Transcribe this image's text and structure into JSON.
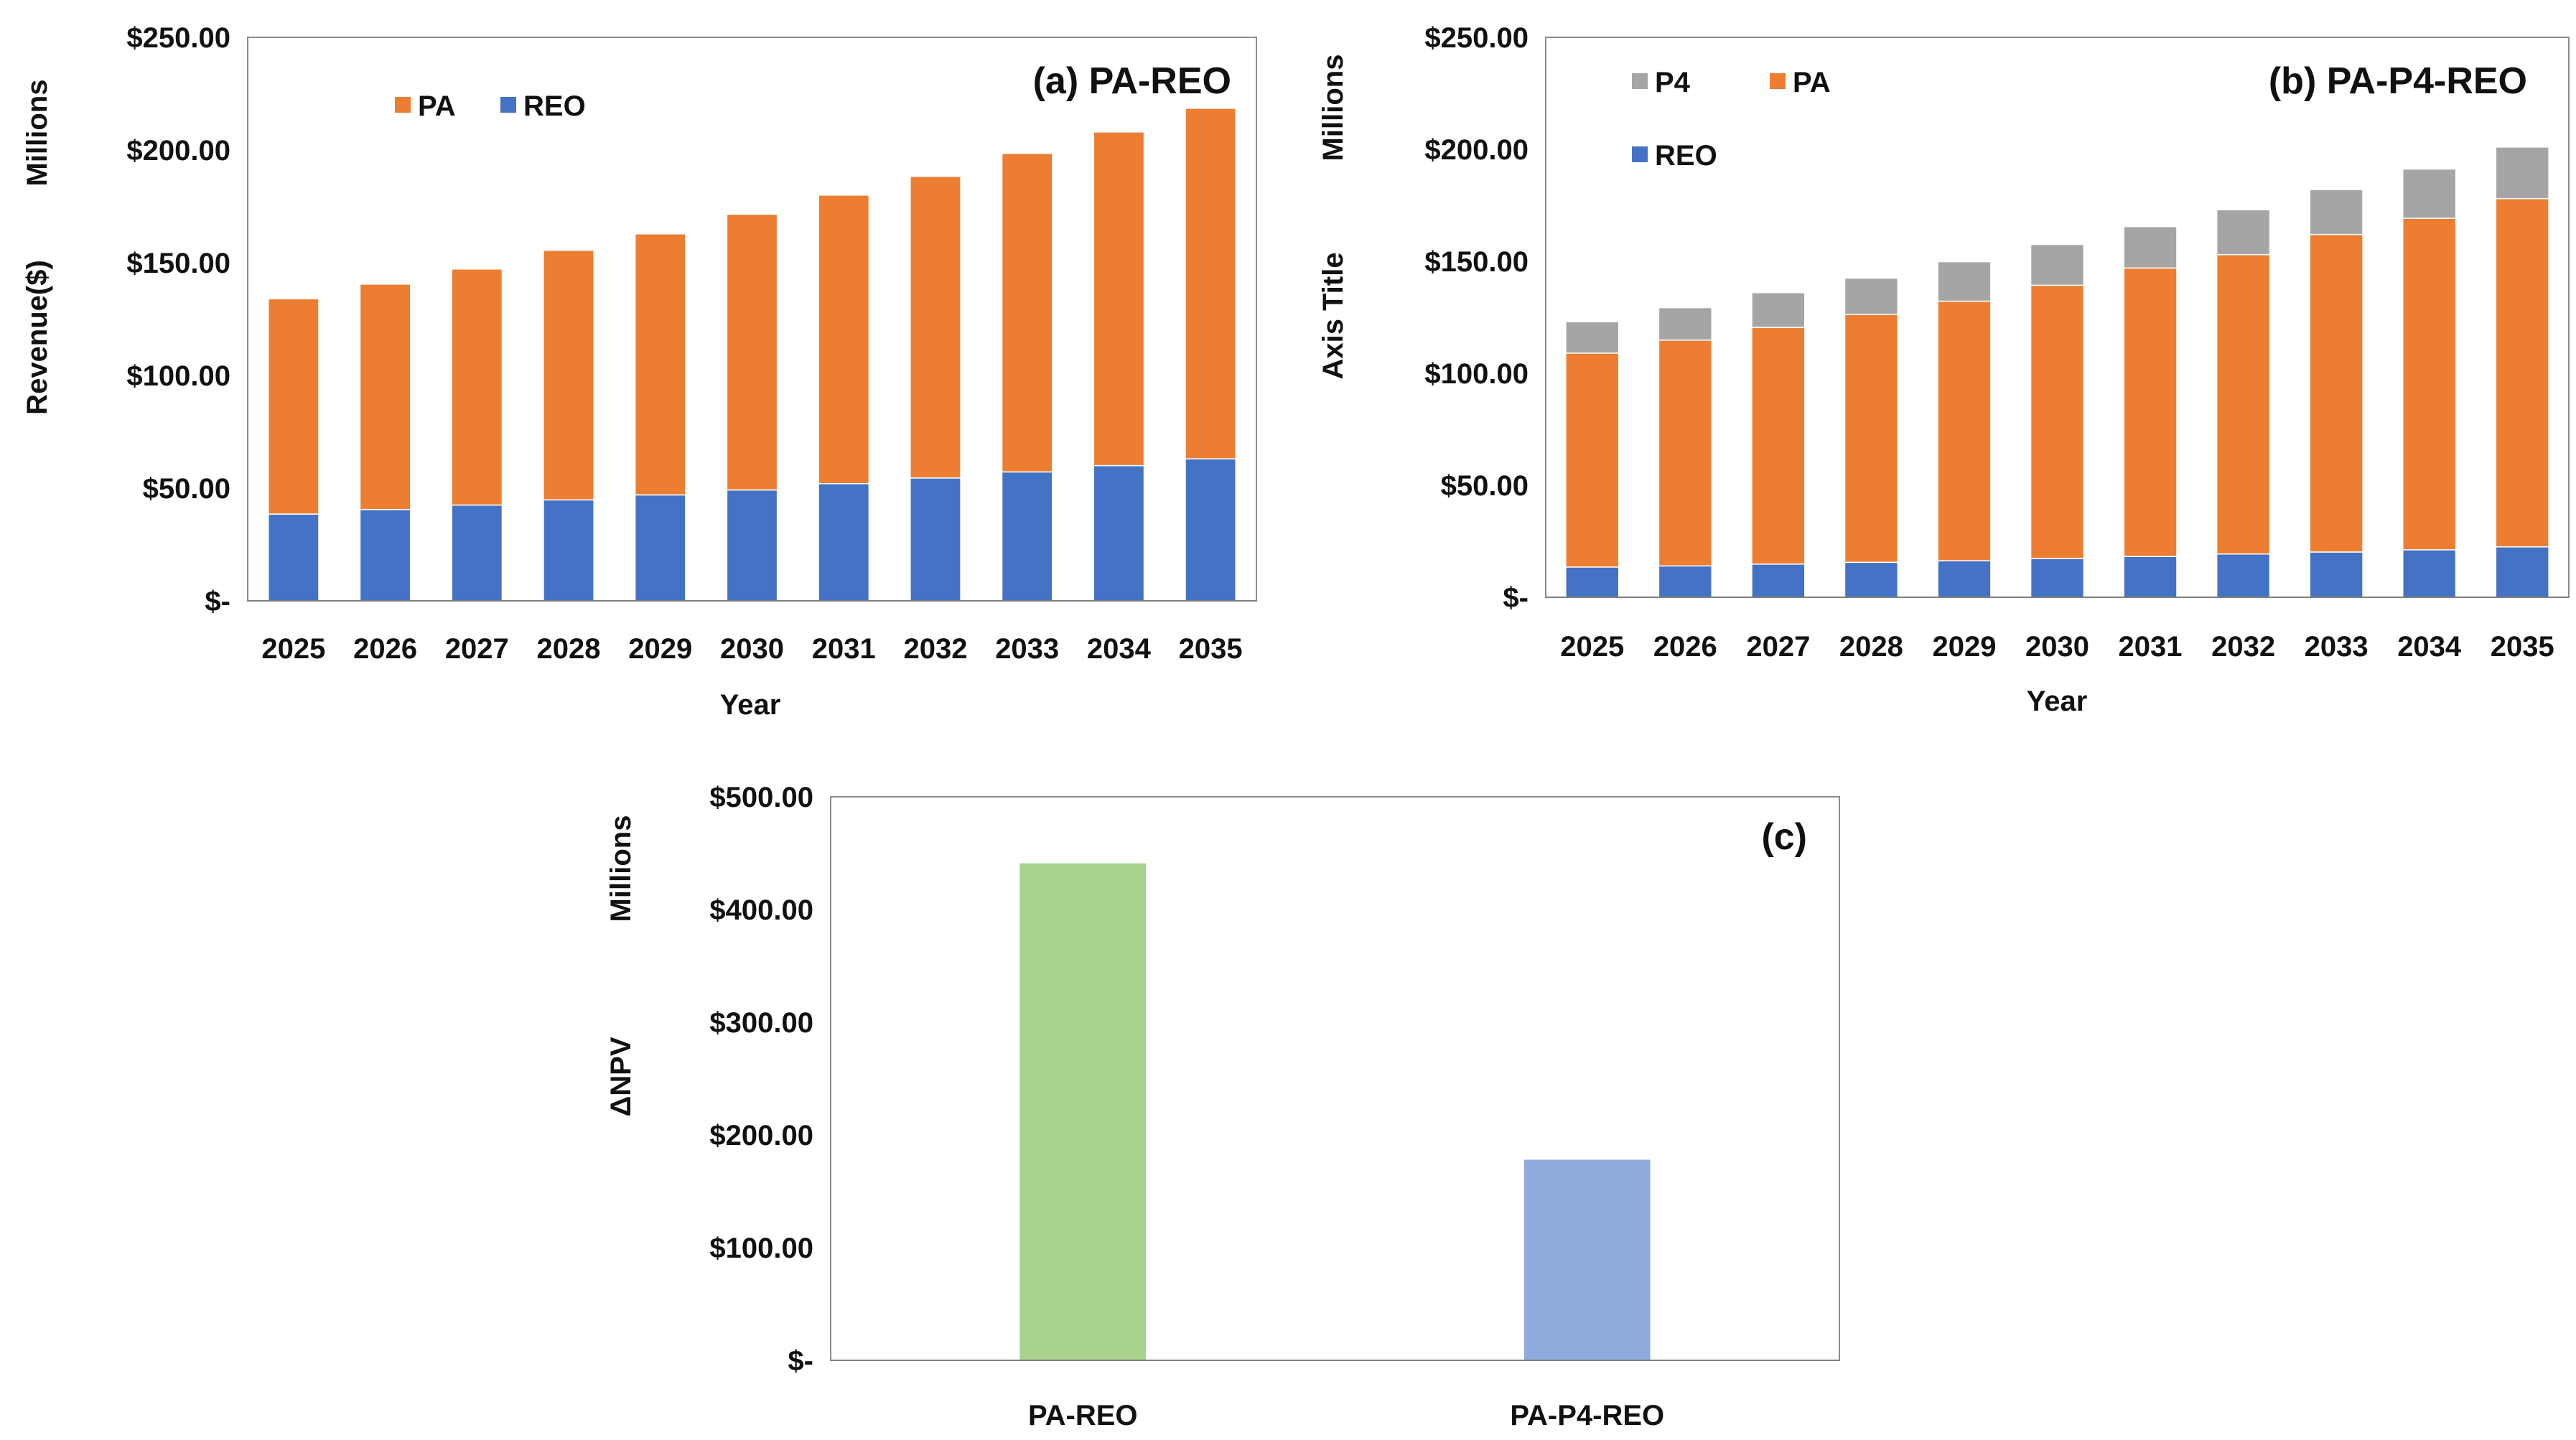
{
  "chart_data": [
    {
      "type": "bar",
      "stacked": true,
      "title": "(a) PA-REO",
      "xlabel": "Year",
      "ylabel": "Revenue($)",
      "yunit": "Millions",
      "ylim": [
        0,
        250
      ],
      "yticks": [
        {
          "v": 0,
          "label": "$-"
        },
        {
          "v": 50,
          "label": "$50.00"
        },
        {
          "v": 100,
          "label": "$100.00"
        },
        {
          "v": 150,
          "label": "$150.00"
        },
        {
          "v": 200,
          "label": "$200.00"
        },
        {
          "v": 250,
          "label": "$250.00"
        }
      ],
      "categories": [
        "2025",
        "2026",
        "2027",
        "2028",
        "2029",
        "2030",
        "2031",
        "2032",
        "2033",
        "2034",
        "2035"
      ],
      "series": [
        {
          "name": "REO",
          "color": "#4472C4",
          "values": [
            38.5,
            40.5,
            42.5,
            44.8,
            47.0,
            49.2,
            52.0,
            54.5,
            57.2,
            60.0,
            63.0
          ]
        },
        {
          "name": "PA",
          "color": "#ED7D31",
          "values": [
            95.5,
            100.0,
            104.7,
            110.7,
            115.8,
            122.3,
            128.0,
            133.8,
            141.3,
            148.0,
            155.5
          ]
        }
      ],
      "legend_order": [
        "PA",
        "REO"
      ]
    },
    {
      "type": "bar",
      "stacked": true,
      "title": "(b) PA-P4-REO",
      "xlabel": "Year",
      "ylabel": "Axis Title",
      "yunit": "Millions",
      "ylim": [
        0,
        250
      ],
      "yticks": [
        {
          "v": 0,
          "label": "$-"
        },
        {
          "v": 50,
          "label": "$50.00"
        },
        {
          "v": 100,
          "label": "$100.00"
        },
        {
          "v": 150,
          "label": "$150.00"
        },
        {
          "v": 200,
          "label": "$200.00"
        },
        {
          "v": 250,
          "label": "$250.00"
        }
      ],
      "categories": [
        "2025",
        "2026",
        "2027",
        "2028",
        "2029",
        "2030",
        "2031",
        "2032",
        "2033",
        "2034",
        "2035"
      ],
      "series": [
        {
          "name": "REO",
          "color": "#4472C4",
          "values": [
            13.5,
            14.0,
            14.8,
            15.6,
            16.3,
            17.3,
            18.2,
            19.3,
            20.2,
            21.2,
            22.5
          ]
        },
        {
          "name": "PA",
          "color": "#ED7D31",
          "values": [
            95.5,
            100.8,
            105.7,
            110.6,
            115.9,
            122.0,
            128.8,
            133.7,
            141.8,
            148.0,
            155.5
          ]
        },
        {
          "name": "P4",
          "color": "#A5A5A5",
          "values": [
            14.0,
            14.5,
            15.5,
            16.3,
            17.6,
            18.2,
            18.5,
            20.0,
            20.0,
            22.0,
            23.0
          ]
        }
      ],
      "legend_order": [
        "P4",
        "PA",
        "REO"
      ]
    },
    {
      "type": "bar",
      "stacked": false,
      "title": "(c)",
      "xlabel": "",
      "ylabel": "ΔNPV",
      "yunit": "Millions",
      "ylim": [
        0,
        500
      ],
      "yticks": [
        {
          "v": 0,
          "label": "$-"
        },
        {
          "v": 100,
          "label": "$100.00"
        },
        {
          "v": 200,
          "label": "$200.00"
        },
        {
          "v": 300,
          "label": "$300.00"
        },
        {
          "v": 400,
          "label": "$400.00"
        },
        {
          "v": 500,
          "label": "$500.00"
        }
      ],
      "categories": [
        "PA-REO",
        "PA-P4-REO"
      ],
      "values": [
        441,
        178
      ],
      "colors": [
        "#A9D18E",
        "#8FAADC"
      ]
    }
  ]
}
